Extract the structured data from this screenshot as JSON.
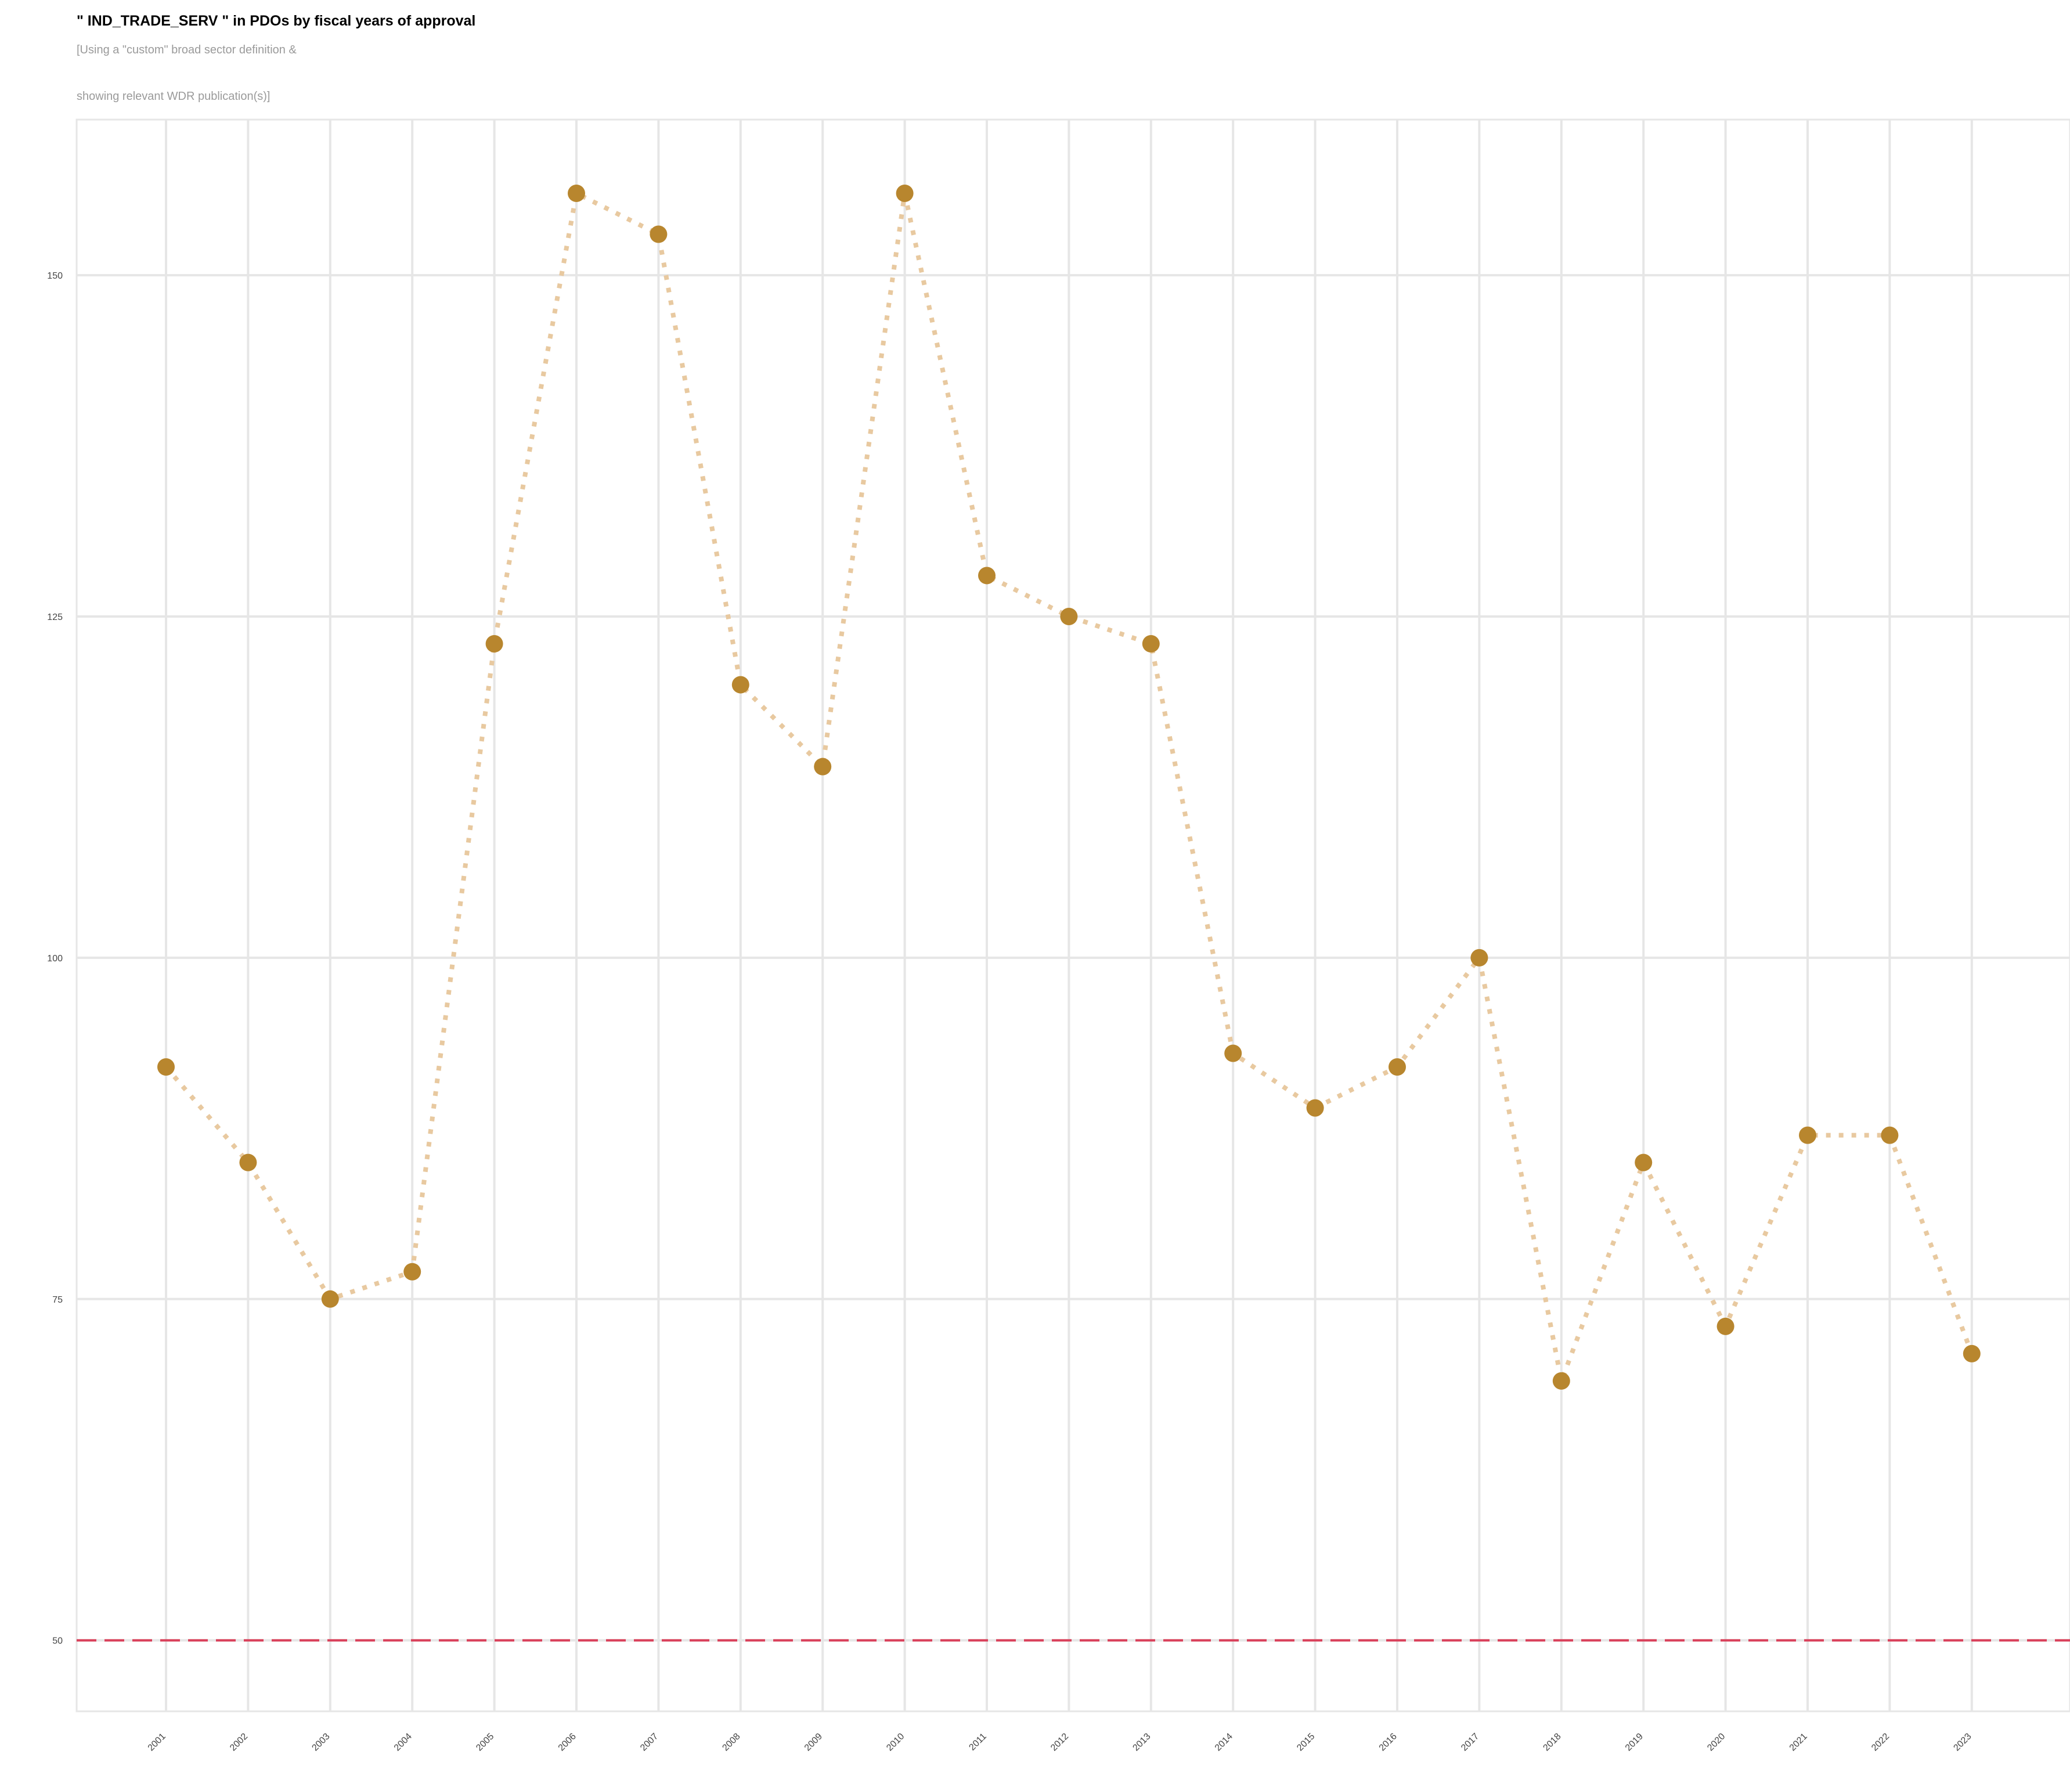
{
  "chart_data": {
    "type": "line",
    "title": "\" IND_TRADE_SERV \" in PDOs by fiscal years of approval",
    "subtitle_lines": [
      "[Using a \"custom\" broad sector definition &",
      "showing relevant WDR publication(s)]"
    ],
    "xlabel": "",
    "ylabel": "",
    "x": [
      "2001",
      "2002",
      "2003",
      "2004",
      "2005",
      "2006",
      "2007",
      "2008",
      "2009",
      "2010",
      "2011",
      "2012",
      "2013",
      "2014",
      "2015",
      "2016",
      "2017",
      "2018",
      "2019",
      "2020",
      "2021",
      "2022",
      "2023"
    ],
    "series": [
      {
        "values": [
          92,
          85,
          75,
          77,
          123,
          156,
          153,
          120,
          114,
          156,
          128,
          125,
          123,
          93,
          89,
          92,
          100,
          69,
          85,
          73,
          87,
          87,
          71
        ],
        "line_color": "#e8c9a0",
        "line_style": "dotted",
        "marker_color": "#b8862e"
      }
    ],
    "reference_line": {
      "value": 50,
      "color": "#d9405a",
      "style": "dashed"
    },
    "ylim": [
      44.8,
      161.4
    ],
    "yticks": [
      50,
      75,
      100,
      125,
      150
    ],
    "grid": true,
    "legend": "none"
  }
}
